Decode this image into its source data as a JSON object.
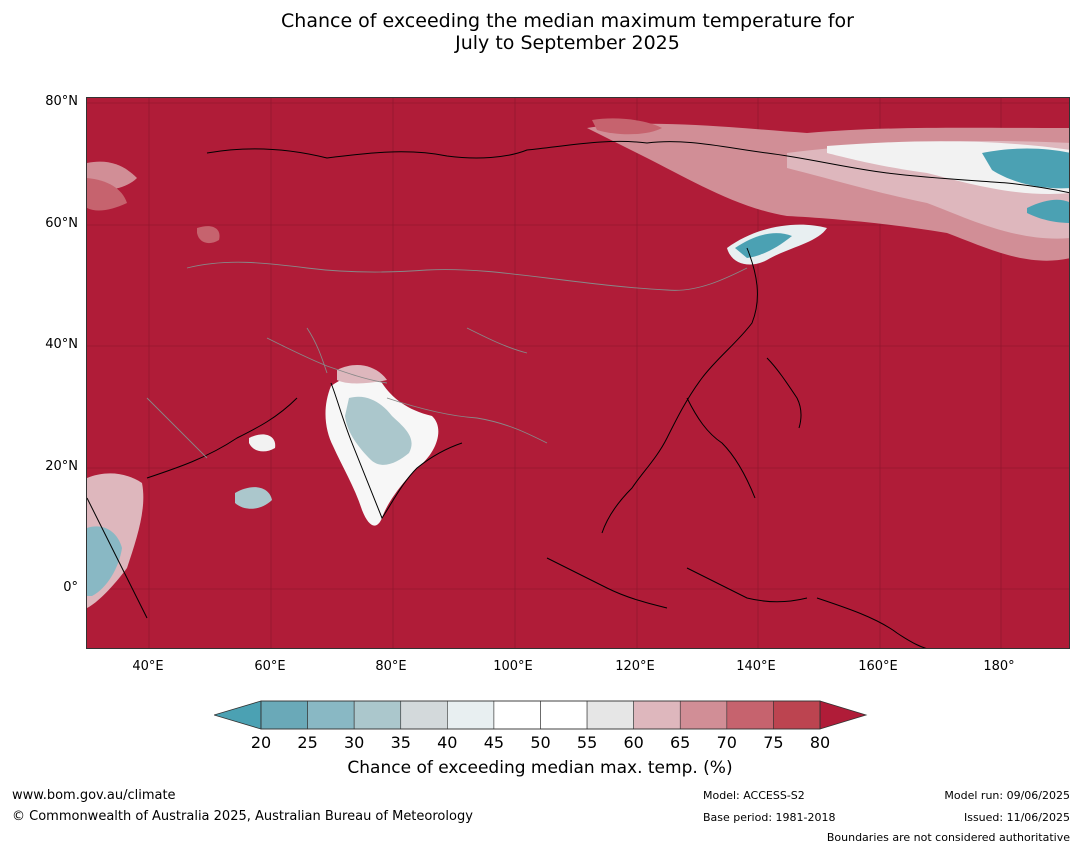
{
  "title": {
    "line1": "Chance of exceeding the median maximum temperature for",
    "line2": "July to September 2025"
  },
  "map": {
    "background_color": "#b01c38",
    "lat_labels": [
      "80°N",
      "60°N",
      "40°N",
      "20°N",
      "0°"
    ],
    "lon_labels": [
      "40°E",
      "60°E",
      "80°E",
      "100°E",
      "120°E",
      "140°E",
      "160°E",
      "180°"
    ],
    "lat_range": [
      -10,
      80
    ],
    "lon_range": [
      30,
      190
    ]
  },
  "legend": {
    "ticks": [
      "20",
      "25",
      "30",
      "35",
      "40",
      "45",
      "50",
      "55",
      "60",
      "65",
      "70",
      "75",
      "80"
    ],
    "colors": [
      "#6aa9b8",
      "#89b8c4",
      "#abc7cc",
      "#d3d9db",
      "#e8eff1",
      "#ffffff",
      "#ffffff",
      "#e6e6e6",
      "#deb7bd",
      "#d18e96",
      "#c6636e",
      "#bc4450"
    ],
    "low_extend_color": "#4ba1b3",
    "high_extend_color": "#b01c38",
    "label": "Chance of exceeding median max. temp. (%)"
  },
  "footer": {
    "url": "www.bom.gov.au/climate",
    "copyright": "© Commonwealth of Australia 2025, Australian Bureau of Meteorology",
    "model": "Model: ACCESS-S2",
    "base_period": "Base period: 1981-2018",
    "model_run": "Model run: 09/06/2025",
    "issued": "Issued: 11/06/2025",
    "disclaimer": "Boundaries are not considered authoritative"
  }
}
